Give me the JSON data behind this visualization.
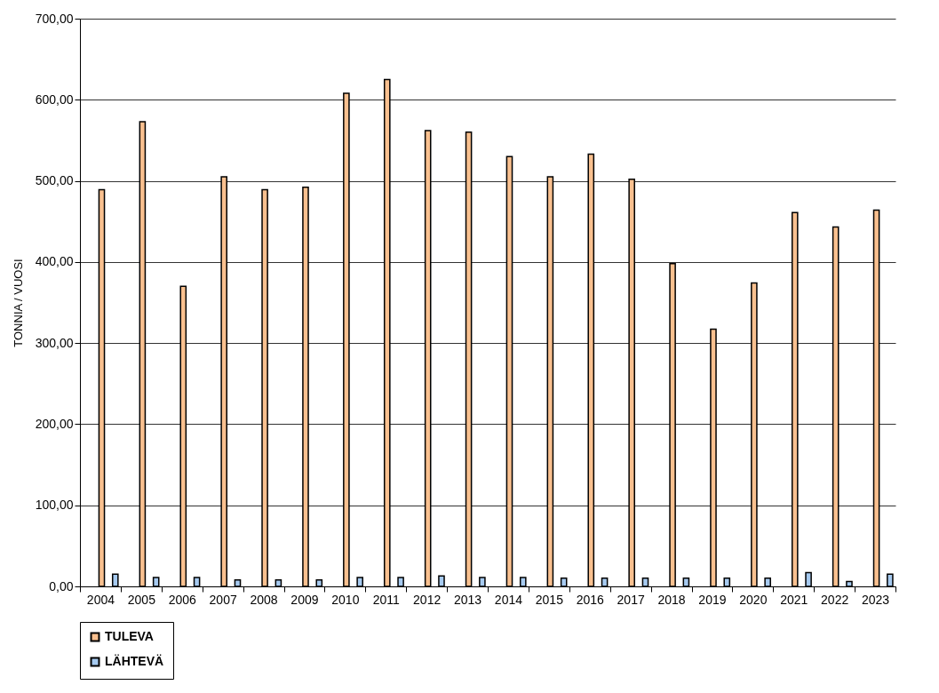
{
  "chart_data": {
    "type": "bar",
    "ylabel": "TONNIA / VUOSI",
    "categories": [
      "2004",
      "2005",
      "2006",
      "2007",
      "2008",
      "2009",
      "2010",
      "2011",
      "2012",
      "2013",
      "2014",
      "2015",
      "2016",
      "2017",
      "2018",
      "2019",
      "2020",
      "2021",
      "2022",
      "2023"
    ],
    "series": [
      {
        "name": "TULEVA",
        "color": "#f9c08f",
        "values": [
          489,
          573,
          370,
          505,
          489,
          492,
          608,
          625,
          562,
          560,
          530,
          505,
          533,
          502,
          398,
          317,
          374,
          461,
          443,
          464
        ]
      },
      {
        "name": "LÄHTEVÄ",
        "color": "#a6caf0",
        "values": [
          15,
          11,
          11,
          8,
          8,
          8,
          11,
          11,
          13,
          11,
          11,
          10,
          10,
          10,
          10,
          10,
          10,
          17,
          6,
          15
        ]
      }
    ],
    "ylim": [
      0,
      700
    ],
    "yticks": [
      {
        "value": 0,
        "label": "0,00"
      },
      {
        "value": 100,
        "label": "100,00"
      },
      {
        "value": 200,
        "label": "200,00"
      },
      {
        "value": 300,
        "label": "300,00"
      },
      {
        "value": 400,
        "label": "400,00"
      },
      {
        "value": 500,
        "label": "500,00"
      },
      {
        "value": 600,
        "label": "600,00"
      },
      {
        "value": 700,
        "label": "700,00"
      }
    ],
    "grid": "y",
    "legend": "bottom"
  }
}
